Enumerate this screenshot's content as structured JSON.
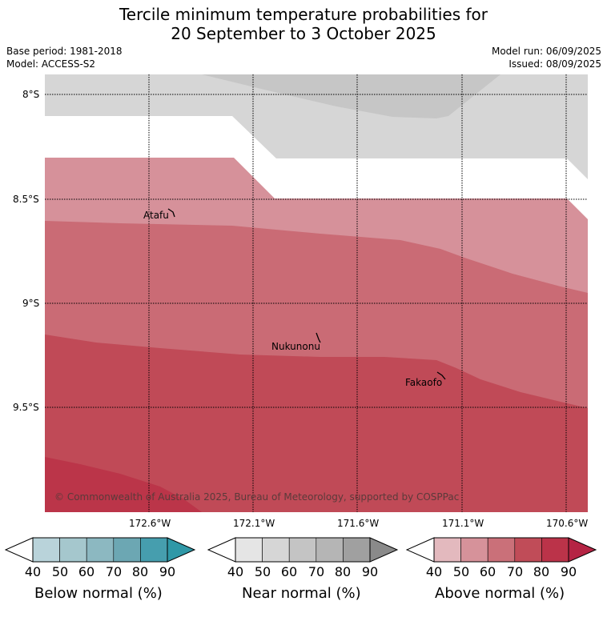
{
  "header": {
    "title_line1": "Tercile minimum temperature probabilities for",
    "title_line2": "20 September to 3 October 2025",
    "base_period": "Base period: 1981-2018",
    "model": "Model: ACCESS-S2",
    "model_run": "Model run: 06/09/2025",
    "issued": "Issued: 08/09/2025"
  },
  "map": {
    "lat_labels": [
      "8°S",
      "8.5°S",
      "9°S",
      "9.5°S"
    ],
    "lon_labels": [
      "172.6°W",
      "172.1°W",
      "171.6°W",
      "171.1°W",
      "170.6°W"
    ],
    "places": [
      "Atafu",
      "Nukunonu",
      "Fakaofo"
    ],
    "copyright": "© Commonwealth of Australia 2025, Bureau of Meteorology, supported by COSPPac"
  },
  "colorbars": [
    {
      "title": "Below normal (%)",
      "ticks": [
        "40",
        "50",
        "60",
        "70",
        "80",
        "90"
      ],
      "colors": [
        "#ffffff",
        "#b9d3da",
        "#a5c7cd",
        "#8cb8c1",
        "#6ca7b3",
        "#469eae",
        "#2f98a7"
      ]
    },
    {
      "title": "Near normal (%)",
      "ticks": [
        "40",
        "50",
        "60",
        "70",
        "80",
        "90"
      ],
      "colors": [
        "#ffffff",
        "#e5e5e5",
        "#d6d6d6",
        "#c4c4c4",
        "#b5b5b5",
        "#a0a0a0",
        "#8a8a8a"
      ]
    },
    {
      "title": "Above normal (%)",
      "ticks": [
        "40",
        "50",
        "60",
        "70",
        "80",
        "90"
      ],
      "colors": [
        "#ffffff",
        "#e3b9be",
        "#d6929a",
        "#ca7079",
        "#c04c58",
        "#bb3349",
        "#b52444"
      ]
    }
  ]
}
